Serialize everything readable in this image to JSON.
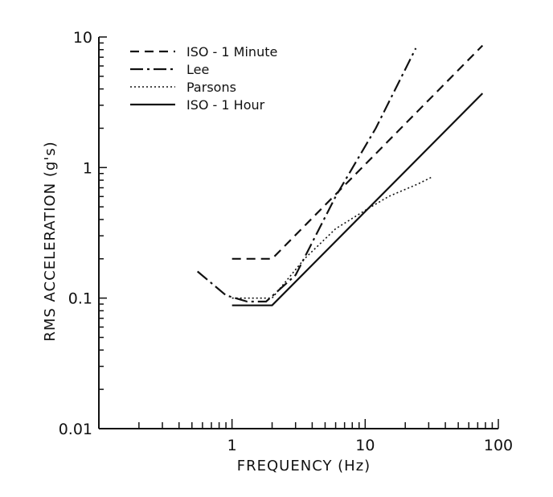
{
  "chart_data": {
    "type": "line",
    "xlabel": "FREQUENCY (Hz)",
    "ylabel": "RMS ACCELERATION (g's)",
    "xscale": "log",
    "yscale": "log",
    "xlim": [
      0.1,
      100
    ],
    "ylim": [
      0.01,
      10
    ],
    "x_tick_labels": [
      {
        "value": 1,
        "label": "1"
      },
      {
        "value": 10,
        "label": "10"
      },
      {
        "value": 100,
        "label": "100"
      }
    ],
    "y_tick_labels": [
      {
        "value": 0.01,
        "label": "0.01"
      },
      {
        "value": 0.1,
        "label": "0.1"
      },
      {
        "value": 1,
        "label": "1"
      },
      {
        "value": 10,
        "label": "10"
      }
    ],
    "grid": false,
    "legend_position": "top-left",
    "series": [
      {
        "name": "ISO - 1  Minute",
        "style": "dashed",
        "points": [
          [
            1.0,
            0.2
          ],
          [
            2.0,
            0.2
          ],
          [
            76,
            8.6
          ]
        ]
      },
      {
        "name": "Lee",
        "style": "dashdot",
        "points": [
          [
            0.55,
            0.16
          ],
          [
            0.9,
            0.105
          ],
          [
            1.3,
            0.094
          ],
          [
            1.8,
            0.094
          ],
          [
            3.0,
            0.15
          ],
          [
            6.0,
            0.6
          ],
          [
            12,
            2.0
          ],
          [
            24,
            8.2
          ]
        ]
      },
      {
        "name": "Parsons",
        "style": "dotted",
        "points": [
          [
            1.0,
            0.1
          ],
          [
            2.0,
            0.1
          ],
          [
            3.5,
            0.2
          ],
          [
            6.0,
            0.34
          ],
          [
            10,
            0.47
          ],
          [
            15,
            0.6
          ],
          [
            25,
            0.75
          ],
          [
            32,
            0.85
          ]
        ]
      },
      {
        "name": "ISO - 1  Hour",
        "style": "solid",
        "points": [
          [
            1.0,
            0.088
          ],
          [
            2.0,
            0.088
          ],
          [
            76,
            3.7
          ]
        ]
      }
    ]
  }
}
